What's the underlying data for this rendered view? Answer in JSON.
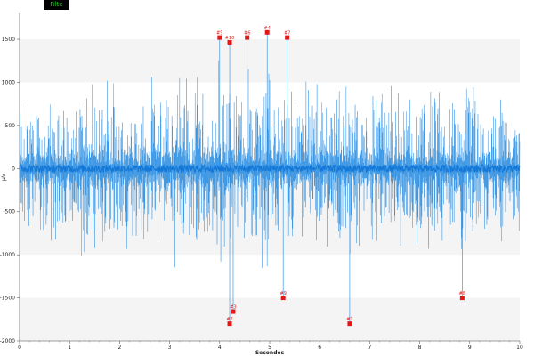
{
  "tag": {
    "label": "Filte"
  },
  "chart_data": {
    "type": "line",
    "title": "",
    "xlabel": "Secondes",
    "ylabel": "µV",
    "xlim": [
      0,
      10
    ],
    "ylim": [
      -2000,
      1800
    ],
    "x_ticks": [
      0,
      1,
      2,
      3,
      4,
      5,
      6,
      7,
      8,
      9,
      10
    ],
    "y_ticks": [
      1500,
      1000,
      500,
      0,
      -500,
      -1000,
      -1500,
      -2000
    ],
    "grid": "alternating horizontal bands",
    "line_color": "#1f88e0",
    "marker_color": "#e01818",
    "series": [
      {
        "amplitude_envelope_uV": [
          {
            "x": 0.0,
            "a": 700
          },
          {
            "x": 0.5,
            "a": 620
          },
          {
            "x": 1.0,
            "a": 680
          },
          {
            "x": 1.5,
            "a": 800
          },
          {
            "x": 2.0,
            "a": 700
          },
          {
            "x": 2.5,
            "a": 720
          },
          {
            "x": 3.0,
            "a": 800
          },
          {
            "x": 3.5,
            "a": 760
          },
          {
            "x": 4.0,
            "a": 880
          },
          {
            "x": 4.5,
            "a": 780
          },
          {
            "x": 5.0,
            "a": 820
          },
          {
            "x": 5.5,
            "a": 720
          },
          {
            "x": 6.0,
            "a": 760
          },
          {
            "x": 6.5,
            "a": 760
          },
          {
            "x": 7.0,
            "a": 650
          },
          {
            "x": 7.5,
            "a": 650
          },
          {
            "x": 8.0,
            "a": 680
          },
          {
            "x": 8.5,
            "a": 700
          },
          {
            "x": 9.0,
            "a": 760
          },
          {
            "x": 9.5,
            "a": 650
          },
          {
            "x": 10.0,
            "a": 600
          }
        ]
      }
    ],
    "markers": [
      {
        "label": "#5",
        "x": 4.0,
        "y": 1520
      },
      {
        "label": "#10",
        "x": 4.2,
        "y": 1465
      },
      {
        "label": "#6",
        "x": 4.55,
        "y": 1520
      },
      {
        "label": "#4",
        "x": 4.95,
        "y": 1580
      },
      {
        "label": "#7",
        "x": 5.35,
        "y": 1520
      },
      {
        "label": "#3",
        "x": 4.27,
        "y": -1660
      },
      {
        "label": "#2",
        "x": 4.2,
        "y": -1800
      },
      {
        "label": "#9",
        "x": 5.27,
        "y": -1500
      },
      {
        "label": "#1",
        "x": 6.6,
        "y": -1800
      },
      {
        "label": "#8",
        "x": 8.85,
        "y": -1500
      }
    ]
  }
}
